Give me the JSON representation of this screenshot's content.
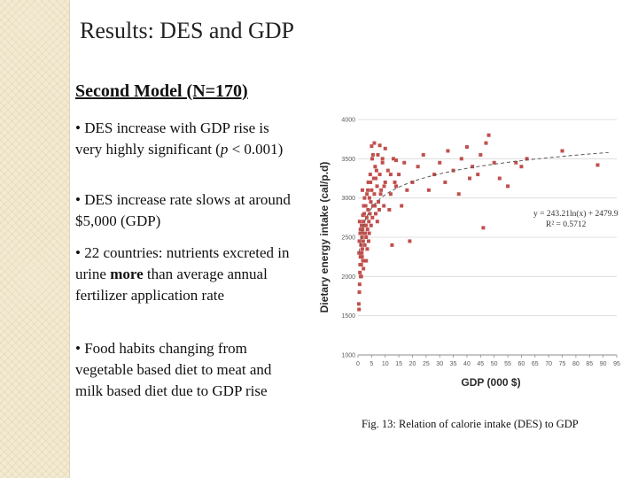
{
  "slide": {
    "title": "Results: DES and GDP",
    "subheading": "Second Model (N=170)",
    "bullets": [
      {
        "pre": "DES increase with GDP rise is very highly significant (",
        "italic": "p",
        "post": " < 0.001)"
      },
      {
        "text": "DES increase rate slows at around $5,000 (GDP)"
      },
      {
        "pre": "22 countries: nutrients excreted in urine ",
        "bold": "more",
        "post": " than average annual fertilizer application rate"
      },
      {
        "text": "Food habits changing from vegetable based diet to meat and milk based diet due to GDP rise"
      }
    ],
    "caption": "Fig. 13: Relation of calorie intake (DES)  to GDP"
  },
  "chart_data": {
    "type": "scatter",
    "title": "",
    "xlabel": "GDP  (000 $)",
    "ylabel": "Dietary energy intake  (cal/p.d)",
    "xlim": [
      0,
      95
    ],
    "ylim": [
      1000,
      4000
    ],
    "xticks": [
      "0",
      "5",
      "10",
      "15",
      "20",
      "25",
      "30",
      "35",
      "40",
      "45",
      "50",
      "55",
      "60",
      "65",
      "70",
      "75",
      "80",
      "85",
      "90",
      "95"
    ],
    "yticks": [
      "1000",
      "1500",
      "2000",
      "2500",
      "3000",
      "3500",
      "4000"
    ],
    "trendline": {
      "type": "logarithmic",
      "a": 243.21,
      "b": 2479.9,
      "style": "dashed"
    },
    "equation": "y = 243.21ln(x) + 2479.9",
    "r_squared": "R² = 0.5712",
    "marker_color": "#c0504d",
    "trend_color": "#595959",
    "series": [
      {
        "name": "countries",
        "points": [
          [
            0.3,
            1650
          ],
          [
            0.4,
            1580
          ],
          [
            0.5,
            1800
          ],
          [
            0.6,
            1900
          ],
          [
            0.7,
            2050
          ],
          [
            0.8,
            2150
          ],
          [
            0.9,
            2250
          ],
          [
            1.0,
            2000
          ],
          [
            0.5,
            2450
          ],
          [
            0.8,
            2550
          ],
          [
            1.1,
            2400
          ],
          [
            1.2,
            2150
          ],
          [
            1.3,
            2650
          ],
          [
            1.4,
            2300
          ],
          [
            1.5,
            2500
          ],
          [
            1.6,
            2350
          ],
          [
            1.7,
            2600
          ],
          [
            1.8,
            2200
          ],
          [
            1.9,
            2450
          ],
          [
            2.0,
            2700
          ],
          [
            2.2,
            2550
          ],
          [
            2.3,
            2800
          ],
          [
            2.5,
            2400
          ],
          [
            2.7,
            2650
          ],
          [
            2.8,
            2900
          ],
          [
            3.0,
            2500
          ],
          [
            3.2,
            2750
          ],
          [
            3.3,
            3050
          ],
          [
            3.5,
            2600
          ],
          [
            3.7,
            2850
          ],
          [
            3.8,
            3200
          ],
          [
            4.0,
            2700
          ],
          [
            4.2,
            3000
          ],
          [
            4.4,
            2800
          ],
          [
            4.5,
            3300
          ],
          [
            4.7,
            2950
          ],
          [
            5.0,
            3100
          ],
          [
            5.2,
            3500
          ],
          [
            5.5,
            2900
          ],
          [
            5.8,
            3250
          ],
          [
            6.0,
            3050
          ],
          [
            6.3,
            3400
          ],
          [
            6.5,
            2800
          ],
          [
            7.0,
            3150
          ],
          [
            7.3,
            3550
          ],
          [
            7.5,
            2950
          ],
          [
            8.0,
            3300
          ],
          [
            8.5,
            3100
          ],
          [
            9.0,
            3450
          ],
          [
            9.5,
            2900
          ],
          [
            10.0,
            3200
          ],
          [
            11.0,
            3350
          ],
          [
            12.0,
            3050
          ],
          [
            12.5,
            2400
          ],
          [
            13.0,
            3500
          ],
          [
            14.0,
            3150
          ],
          [
            15.0,
            3300
          ],
          [
            16.0,
            2900
          ],
          [
            17.0,
            3450
          ],
          [
            18.0,
            3100
          ],
          [
            19.0,
            2450
          ],
          [
            20.0,
            3200
          ],
          [
            22.0,
            3400
          ],
          [
            24.0,
            3550
          ],
          [
            26.0,
            3100
          ],
          [
            28.0,
            3300
          ],
          [
            30.0,
            3450
          ],
          [
            32.0,
            3200
          ],
          [
            33.0,
            3600
          ],
          [
            35.0,
            3350
          ],
          [
            37.0,
            3050
          ],
          [
            38.0,
            3500
          ],
          [
            40.0,
            3650
          ],
          [
            41.0,
            3250
          ],
          [
            42.0,
            3400
          ],
          [
            44.0,
            3300
          ],
          [
            45.0,
            3550
          ],
          [
            46.0,
            2620
          ],
          [
            47.0,
            3700
          ],
          [
            48.0,
            3800
          ],
          [
            50.0,
            3450
          ],
          [
            52.0,
            3250
          ],
          [
            55.0,
            3150
          ],
          [
            58.0,
            3450
          ],
          [
            60.0,
            3400
          ],
          [
            62.0,
            3500
          ],
          [
            75.0,
            3600
          ],
          [
            88.0,
            3420
          ],
          [
            5.0,
            3660
          ],
          [
            6.0,
            3700
          ],
          [
            8.0,
            3670
          ],
          [
            10.0,
            3630
          ],
          [
            9.0,
            3500
          ],
          [
            14.0,
            3480
          ],
          [
            3.0,
            2200
          ],
          [
            2.0,
            2100
          ],
          [
            1.0,
            2300
          ],
          [
            1.5,
            2250
          ],
          [
            0.9,
            2600
          ],
          [
            2.6,
            2550
          ],
          [
            4.1,
            2550
          ],
          [
            6.5,
            3250
          ],
          [
            11.5,
            2850
          ],
          [
            7.8,
            2850
          ],
          [
            3.4,
            2350
          ],
          [
            5.5,
            3550
          ],
          [
            12.0,
            3300
          ],
          [
            1.8,
            2780
          ],
          [
            0.6,
            2700
          ],
          [
            2.4,
            3000
          ],
          [
            4.8,
            2650
          ],
          [
            6.2,
            2900
          ],
          [
            8.3,
            3050
          ],
          [
            9.6,
            3150
          ],
          [
            1.2,
            2000
          ],
          [
            2.9,
            2650
          ],
          [
            3.9,
            2450
          ],
          [
            5.3,
            2750
          ],
          [
            7.1,
            2700
          ],
          [
            13.5,
            3200
          ],
          [
            0.4,
            2300
          ],
          [
            1.6,
            3100
          ],
          [
            2.1,
            2900
          ],
          [
            3.6,
            3100
          ],
          [
            4.6,
            3200
          ],
          [
            6.8,
            3350
          ]
        ]
      }
    ]
  }
}
